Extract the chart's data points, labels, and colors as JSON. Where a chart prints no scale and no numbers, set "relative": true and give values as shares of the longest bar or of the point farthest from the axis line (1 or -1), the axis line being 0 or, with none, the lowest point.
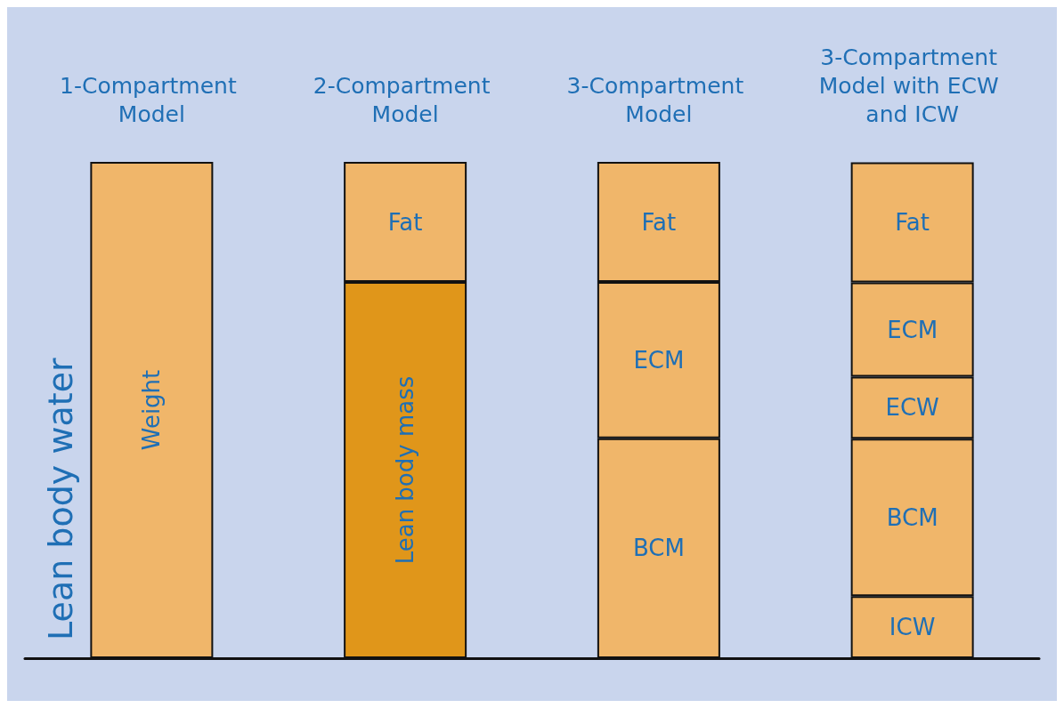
{
  "chart_data": {
    "type": "bar",
    "stacked": true,
    "relative": true,
    "ylabel": "Lean body water",
    "categories": [
      "1-Compartment Model",
      "2-Compartment Model",
      "3-Compartment Model",
      "3-Compartment Model with ECW and ICW"
    ],
    "series": [
      {
        "name": "Weight",
        "color": "#f0b66a",
        "values": [
          1,
          null,
          null,
          null
        ]
      },
      {
        "name": "Lean body mass",
        "color": "#e0961a",
        "values": [
          null,
          0.758,
          null,
          null
        ]
      },
      {
        "name": "ICW",
        "color": "#f0b66a",
        "values": [
          null,
          null,
          null,
          0.125
        ]
      },
      {
        "name": "BCM",
        "color": "#f0b66a",
        "values": [
          null,
          null,
          0.443,
          0.317
        ]
      },
      {
        "name": "ECW",
        "color": "#f0b66a",
        "values": [
          null,
          null,
          null,
          0.125
        ]
      },
      {
        "name": "ECM",
        "color": "#f0b66a",
        "values": [
          null,
          null,
          0.315,
          0.19
        ]
      },
      {
        "name": "Fat",
        "color": "#f0b66a",
        "values": [
          null,
          0.242,
          0.242,
          0.242
        ]
      }
    ],
    "legend": false
  }
}
